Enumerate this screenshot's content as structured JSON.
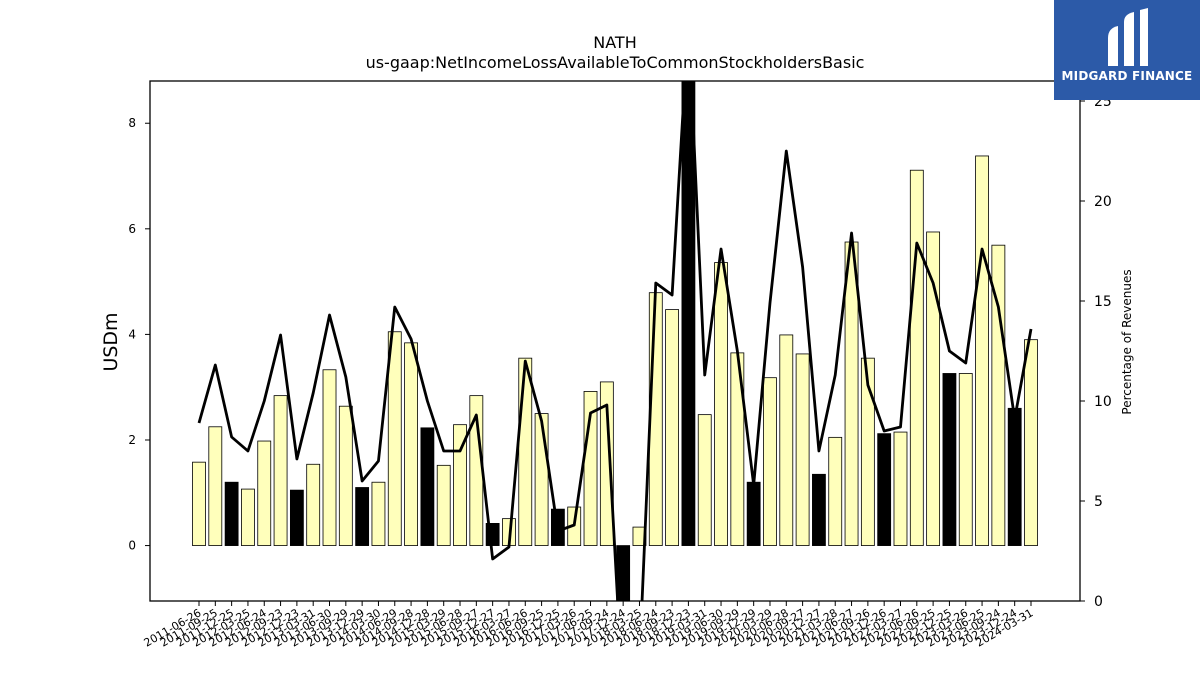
{
  "chart_data": {
    "type": "bar",
    "title": "NATH",
    "subtitle": "us-gaap:NetIncomeLossAvailableToCommonStockholdersBasic",
    "ylabel": "USDm",
    "y2label": "Percentage of Revenues",
    "ylim": [
      -1.05,
      8.8
    ],
    "y2lim": [
      0,
      26
    ],
    "yticks": [
      0,
      2,
      4,
      6,
      8
    ],
    "y2ticks": [
      0,
      5,
      10,
      15,
      20,
      25
    ],
    "categories": [
      "2011-06-26",
      "2011-09-25",
      "2011-12-25",
      "2012-03-25",
      "2012-06-24",
      "2012-09-23",
      "2012-12-23",
      "2013-03-31",
      "2013-06-30",
      "2013-09-29",
      "2013-12-29",
      "2014-03-30",
      "2014-06-29",
      "2014-09-28",
      "2014-12-28",
      "2015-03-29",
      "2015-06-28",
      "2015-09-27",
      "2015-12-27",
      "2016-03-27",
      "2016-06-26",
      "2016-09-25",
      "2016-12-25",
      "2017-03-26",
      "2017-06-25",
      "2017-09-24",
      "2017-12-24",
      "2018-03-25",
      "2018-06-24",
      "2018-09-23",
      "2018-12-23",
      "2019-03-31",
      "2019-06-30",
      "2019-09-29",
      "2019-12-29",
      "2020-03-29",
      "2020-06-28",
      "2020-09-27",
      "2020-12-27",
      "2021-03-28",
      "2021-06-27",
      "2021-09-26",
      "2021-12-26",
      "2022-03-27",
      "2022-06-26",
      "2022-09-25",
      "2022-12-25",
      "2023-03-26",
      "2023-06-25",
      "2023-09-24",
      "2023-12-24",
      "2024-03-31"
    ],
    "series": [
      {
        "type": "bar",
        "values": [
          1.58,
          2.25,
          1.2,
          1.07,
          1.98,
          2.84,
          1.05,
          1.54,
          3.33,
          2.64,
          1.1,
          1.2,
          4.05,
          3.84,
          2.23,
          1.52,
          2.29,
          2.84,
          0.42,
          0.51,
          3.55,
          2.5,
          0.69,
          0.73,
          2.92,
          3.1,
          -1.2,
          0.35,
          4.79,
          4.47,
          9.2,
          2.48,
          5.36,
          3.65,
          1.2,
          3.18,
          3.99,
          3.63,
          1.35,
          2.05,
          5.75,
          3.55,
          2.12,
          2.15,
          7.11,
          5.94,
          3.26,
          3.26,
          7.38,
          5.69,
          2.6,
          3.9
        ],
        "highlight": [
          false,
          false,
          true,
          false,
          false,
          false,
          true,
          false,
          false,
          false,
          true,
          false,
          false,
          false,
          true,
          false,
          false,
          false,
          true,
          false,
          false,
          false,
          true,
          false,
          false,
          false,
          true,
          false,
          false,
          false,
          true,
          false,
          false,
          false,
          true,
          false,
          false,
          false,
          true,
          false,
          false,
          false,
          true,
          false,
          false,
          false,
          true,
          false,
          false,
          false,
          true,
          false
        ]
      },
      {
        "type": "line",
        "axis": "right",
        "values": [
          8.9,
          11.8,
          8.2,
          7.5,
          10,
          13.3,
          7.1,
          10.4,
          14.3,
          11.2,
          6,
          7,
          14.7,
          13.1,
          10,
          7.5,
          7.5,
          9.3,
          2.1,
          2.7,
          12,
          9,
          3.5,
          3.8,
          9.4,
          9.8,
          -5,
          -3,
          15.9,
          15.3,
          29,
          11.3,
          17.6,
          12.5,
          5.8,
          14.9,
          22.5,
          16.7,
          7.5,
          11.3,
          18.4,
          10.8,
          8.5,
          8.7,
          17.9,
          15.9,
          12.5,
          11.9,
          17.6,
          14.7,
          9.1,
          13.6
        ]
      }
    ],
    "colors": {
      "bar_fill": "#ffffbb",
      "bar_highlight": "#000000",
      "bar_edge": "#000000",
      "line": "#000000"
    }
  },
  "logo": {
    "text": "MIDGARD FINANCE",
    "color": "#2c5aa8"
  }
}
